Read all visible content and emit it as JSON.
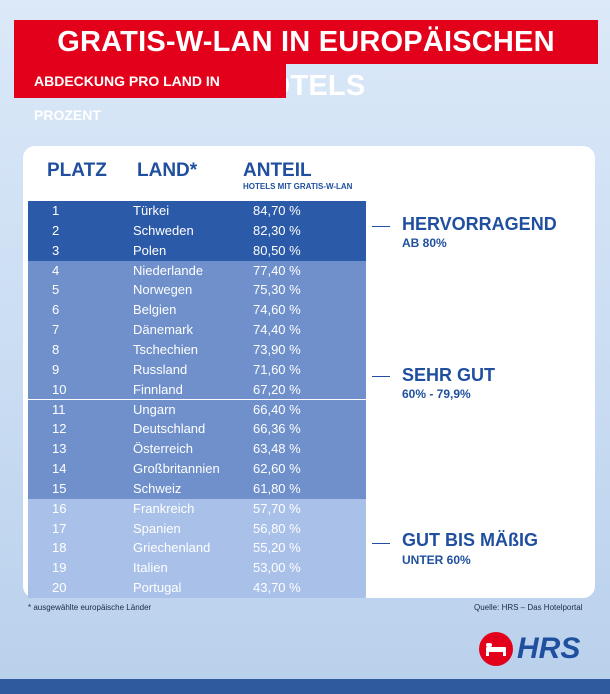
{
  "title": "GRATIS-W-LAN IN EUROPÄISCHEN HOTELS",
  "subtitle": "ABDECKUNG PRO LAND IN PROZENT",
  "headers": {
    "rank": "PLATZ",
    "land": "LAND*",
    "anteil": "ANTEIL",
    "anteil_sub": "HOTELS MIT GRATIS-W-LAN"
  },
  "categories": [
    {
      "name": "HERVORRAGEND",
      "range": "AB 80%",
      "color": "#2a5aa8"
    },
    {
      "name": "SEHR GUT",
      "range": "60% - 79,9%",
      "color": "#6f90cb"
    },
    {
      "name": "GUT BIS MÄßIG",
      "range": "UNTER 60%",
      "color": "#a9c0e8"
    }
  ],
  "chart_data": {
    "type": "table",
    "title": "GRATIS-W-LAN IN EUROPÄISCHEN HOTELS",
    "subtitle": "ABDECKUNG PRO LAND IN PROZENT",
    "columns": [
      "PLATZ",
      "LAND*",
      "ANTEIL"
    ],
    "rows": [
      {
        "rank": "1",
        "land": "Türkei",
        "value": "84,70 %",
        "cat": 0
      },
      {
        "rank": "2",
        "land": "Schweden",
        "value": "82,30 %",
        "cat": 0
      },
      {
        "rank": "3",
        "land": "Polen",
        "value": "80,50 %",
        "cat": 0
      },
      {
        "rank": "4",
        "land": "Niederlande",
        "value": "77,40 %",
        "cat": 1
      },
      {
        "rank": "5",
        "land": "Norwegen",
        "value": "75,30 %",
        "cat": 1
      },
      {
        "rank": "6",
        "land": "Belgien",
        "value": "74,60 %",
        "cat": 1
      },
      {
        "rank": "7",
        "land": "Dänemark",
        "value": "74,40 %",
        "cat": 1
      },
      {
        "rank": "8",
        "land": "Tschechien",
        "value": "73,90 %",
        "cat": 1
      },
      {
        "rank": "9",
        "land": "Russland",
        "value": "71,60 %",
        "cat": 1
      },
      {
        "rank": "10",
        "land": "Finnland",
        "value": "67,20 %",
        "cat": 1
      },
      {
        "rank": "11",
        "land": "Ungarn",
        "value": "66,40 %",
        "cat": 1
      },
      {
        "rank": "12",
        "land": "Deutschland",
        "value": "66,36 %",
        "cat": 1
      },
      {
        "rank": "13",
        "land": "Österreich",
        "value": "63,48 %",
        "cat": 1
      },
      {
        "rank": "14",
        "land": "Großbritannien",
        "value": "62,60 %",
        "cat": 1
      },
      {
        "rank": "15",
        "land": "Schweiz",
        "value": "61,80 %",
        "cat": 1
      },
      {
        "rank": "16",
        "land": "Frankreich",
        "value": "57,70 %",
        "cat": 2
      },
      {
        "rank": "17",
        "land": "Spanien",
        "value": "56,80 %",
        "cat": 2
      },
      {
        "rank": "18",
        "land": "Griechenland",
        "value": "55,20 %",
        "cat": 2
      },
      {
        "rank": "19",
        "land": "Italien",
        "value": "53,00 %",
        "cat": 2
      },
      {
        "rank": "20",
        "land": "Portugal",
        "value": "43,70 %",
        "cat": 2
      }
    ]
  },
  "footnote": "* ausgewählte europäische Länder",
  "source": "Quelle: HRS – Das Hotelportal",
  "logo": {
    "text": "HRS",
    "icon": "hrs-bed-icon"
  }
}
